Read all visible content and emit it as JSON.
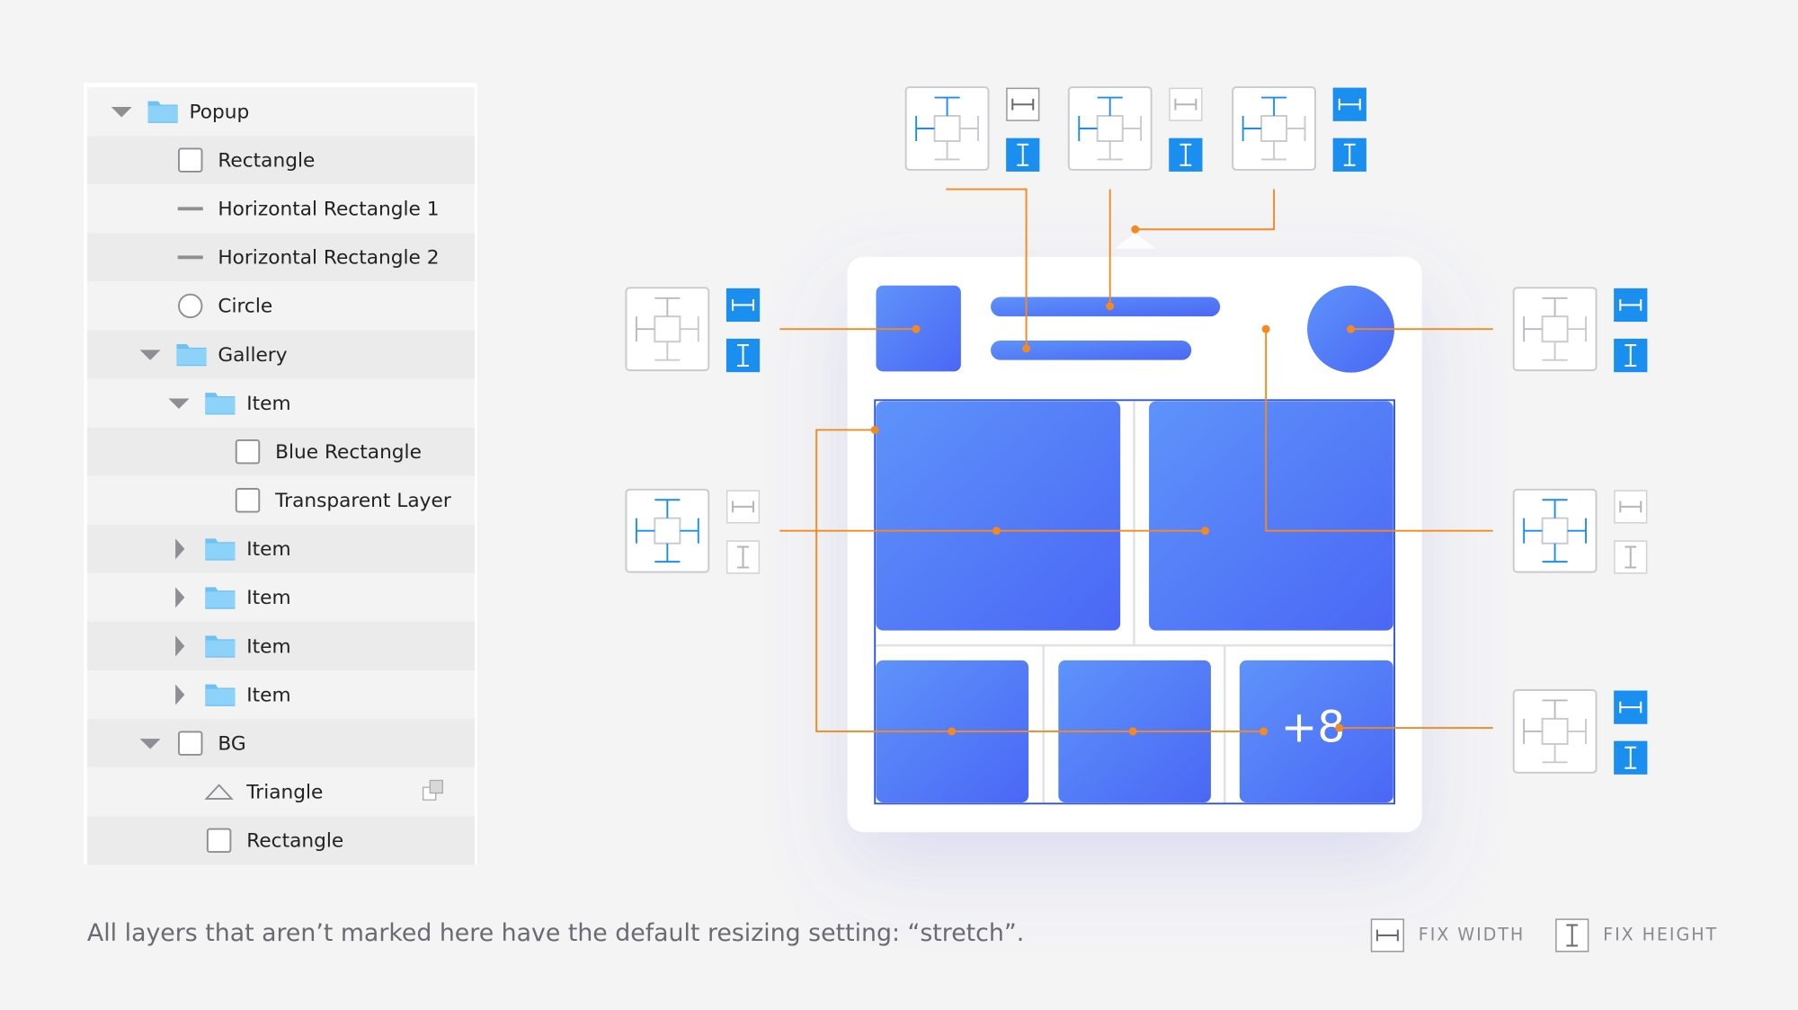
{
  "layers": [
    {
      "name": "Popup"
    },
    {
      "name": "Rectangle"
    },
    {
      "name": "Horizontal Rectangle 1"
    },
    {
      "name": "Horizontal Rectangle 2"
    },
    {
      "name": "Circle"
    },
    {
      "name": "Gallery"
    },
    {
      "name": "Item"
    },
    {
      "name": "Blue Rectangle"
    },
    {
      "name": "Transparent Layer"
    },
    {
      "name": "Item"
    },
    {
      "name": "Item"
    },
    {
      "name": "Item"
    },
    {
      "name": "Item"
    },
    {
      "name": "BG"
    },
    {
      "name": "Triangle"
    },
    {
      "name": "Rectangle"
    }
  ],
  "gallery": {
    "more_label": "+8"
  },
  "footer": {
    "note": "All layers that aren’t marked here have the default resizing setting: “stretch”.",
    "legend": [
      "FIX WIDTH",
      "FIX HEIGHT"
    ]
  }
}
